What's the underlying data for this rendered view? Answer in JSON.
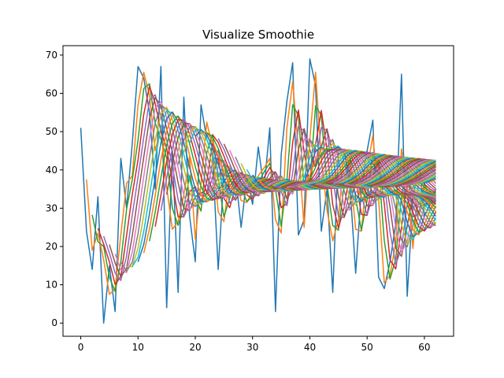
{
  "chart_data": {
    "type": "line",
    "title": "Visualize Smoothie",
    "xlabel": "",
    "ylabel": "",
    "xlim": [
      -3.1,
      65.1
    ],
    "ylim": [
      -3.45,
      72.45
    ],
    "xticks": [
      0,
      10,
      20,
      30,
      40,
      50,
      60
    ],
    "yticks": [
      0,
      10,
      20,
      30,
      40,
      50,
      60,
      70
    ],
    "grid": false,
    "legend": "none",
    "colors": [
      "#1f77b4",
      "#ff7f0e",
      "#2ca02c",
      "#d62728",
      "#9467bd",
      "#8c564b",
      "#e377c2",
      "#7f7f7f",
      "#bcbd22",
      "#17becf"
    ],
    "smoothing": "successive 2-point moving averages; series k starts at x = k",
    "x": [
      0,
      1,
      2,
      3,
      4,
      5,
      6,
      7,
      8,
      9,
      10,
      11,
      12,
      13,
      14,
      15,
      16,
      17,
      18,
      19,
      20,
      21,
      22,
      23,
      24,
      25,
      26,
      27,
      28,
      29,
      30,
      31,
      32,
      33,
      34,
      35,
      36,
      37,
      38,
      39,
      40,
      41,
      42,
      43,
      44,
      45,
      46,
      47,
      48,
      49,
      50,
      51,
      52,
      53,
      54,
      55,
      56,
      57,
      58,
      59,
      60,
      61,
      62
    ],
    "raw_series": [
      51,
      24,
      14,
      33,
      0,
      15,
      3,
      43,
      30,
      47,
      67,
      64,
      55,
      35,
      67,
      4,
      45,
      8,
      59,
      28,
      16,
      57,
      48,
      44,
      14,
      39,
      38,
      39,
      25,
      38,
      31,
      46,
      35,
      51,
      3,
      44,
      58,
      68,
      23,
      27,
      69,
      62,
      24,
      35,
      8,
      46,
      45,
      36,
      13,
      35,
      45,
      53,
      12,
      9,
      16,
      26,
      65,
      7,
      32,
      43,
      28,
      31,
      35
    ]
  }
}
